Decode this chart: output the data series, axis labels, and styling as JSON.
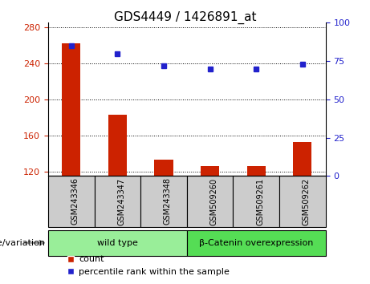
{
  "title": "GDS4449 / 1426891_at",
  "samples": [
    "GSM243346",
    "GSM243347",
    "GSM243348",
    "GSM509260",
    "GSM509261",
    "GSM509262"
  ],
  "counts": [
    262,
    183,
    133,
    126,
    126,
    153
  ],
  "percentiles": [
    85,
    80,
    72,
    70,
    70,
    73
  ],
  "ylim_left": [
    115,
    285
  ],
  "yticks_left": [
    120,
    160,
    200,
    240,
    280
  ],
  "ylim_right": [
    0,
    100
  ],
  "yticks_right": [
    0,
    25,
    50,
    75,
    100
  ],
  "bar_color": "#cc2200",
  "dot_color": "#2222cc",
  "title_fontsize": 11,
  "tick_label_color_left": "#cc2200",
  "tick_label_color_right": "#2222cc",
  "groups": [
    {
      "label": "wild type",
      "indices": [
        0,
        1,
        2
      ],
      "color": "#99ee99"
    },
    {
      "label": "β-Catenin overexpression",
      "indices": [
        3,
        4,
        5
      ],
      "color": "#55dd55"
    }
  ],
  "legend_count_label": "count",
  "legend_percentile_label": "percentile rank within the sample",
  "genotype_label": "genotype/variation",
  "xtick_bg_color": "#cccccc",
  "bar_width": 0.4
}
